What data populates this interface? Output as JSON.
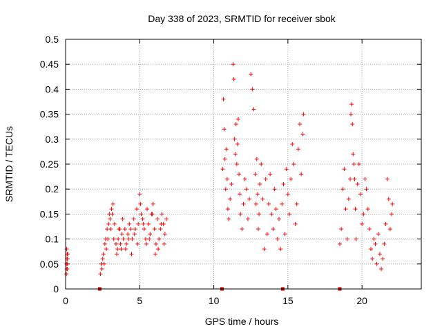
{
  "chart_data": {
    "type": "scatter",
    "title": "Day 338 of 2023, SRMTID for receiver sbok",
    "xlabel": "GPS time / hours",
    "ylabel": "SRMTID / TECUs",
    "xlim": [
      0,
      24
    ],
    "ylim": [
      0,
      0.5
    ],
    "xticks": [
      0,
      5,
      10,
      15,
      20
    ],
    "yticks": [
      0,
      0.05,
      0.1,
      0.15,
      0.2,
      0.25,
      0.3,
      0.35,
      0.4,
      0.45,
      0.5
    ],
    "xtick_labels": [
      "0",
      "5",
      "10",
      "15",
      "20"
    ],
    "ytick_labels": [
      "0",
      "0.05",
      "0.1",
      "0.15",
      "0.2",
      "0.25",
      "0.3",
      "0.35",
      "0.4",
      "0.45",
      "0.5"
    ],
    "grid": true,
    "marker": "+",
    "series": [
      {
        "name": "SRMTID",
        "color": "#ff0000",
        "x": [
          0.05,
          0.06,
          0.07,
          0.08,
          0.09,
          0.1,
          0.11,
          0.12,
          0.13,
          0.14,
          2.35,
          2.4,
          2.45,
          2.5,
          2.55,
          2.6,
          2.65,
          2.7,
          2.75,
          2.8,
          2.85,
          2.9,
          2.95,
          3.0,
          3.05,
          3.1,
          3.15,
          3.2,
          3.3,
          3.4,
          3.5,
          3.55,
          3.6,
          3.7,
          3.75,
          3.8,
          3.9,
          4.0,
          4.1,
          4.2,
          4.3,
          4.4,
          4.5,
          4.6,
          4.7,
          4.8,
          4.9,
          5.0,
          5.1,
          5.2,
          5.3,
          5.4,
          5.5,
          5.6,
          5.7,
          5.8,
          5.9,
          6.0,
          6.1,
          6.2,
          6.3,
          6.4,
          6.5,
          6.6,
          6.7,
          6.8,
          3.25,
          3.45,
          3.65,
          3.85,
          4.05,
          4.25,
          4.45,
          4.65,
          4.85,
          5.05,
          5.25,
          5.45,
          5.65,
          5.85,
          6.05,
          6.25,
          6.45,
          6.65,
          10.6,
          10.65,
          10.7,
          10.75,
          10.8,
          10.85,
          10.9,
          10.95,
          11.0,
          11.1,
          11.2,
          11.3,
          11.35,
          11.4,
          11.45,
          11.5,
          11.55,
          11.6,
          11.65,
          11.7,
          11.75,
          11.8,
          11.9,
          12.0,
          12.1,
          12.2,
          12.3,
          12.4,
          12.5,
          12.6,
          12.7,
          12.8,
          12.85,
          12.9,
          12.95,
          13.0,
          13.05,
          13.1,
          13.2,
          13.3,
          13.4,
          13.5,
          13.6,
          13.7,
          13.8,
          13.9,
          14.0,
          14.1,
          14.2,
          14.3,
          14.4,
          14.5,
          14.6,
          14.7,
          14.8,
          14.9,
          15.0,
          15.1,
          15.2,
          15.3,
          15.4,
          15.5,
          15.6,
          15.7,
          15.8,
          15.9,
          16.0,
          16.05,
          18.5,
          18.6,
          18.7,
          18.8,
          18.9,
          19.0,
          19.1,
          19.2,
          19.25,
          19.3,
          19.35,
          19.4,
          19.45,
          19.5,
          19.55,
          19.6,
          19.7,
          19.8,
          19.9,
          20.0,
          20.1,
          20.2,
          20.3,
          20.4,
          20.5,
          20.6,
          20.7,
          20.8,
          20.9,
          21.0,
          21.1,
          21.2,
          21.3,
          21.4,
          21.5,
          21.6,
          21.7,
          21.8,
          21.9,
          22.0,
          22.05
        ],
        "y": [
          0.03,
          0.05,
          0.08,
          0.04,
          0.06,
          0.07,
          0.05,
          0.04,
          0.06,
          0.07,
          0.03,
          0.05,
          0.04,
          0.06,
          0.07,
          0.05,
          0.09,
          0.1,
          0.08,
          0.12,
          0.1,
          0.13,
          0.15,
          0.14,
          0.12,
          0.16,
          0.15,
          0.17,
          0.13,
          0.09,
          0.08,
          0.1,
          0.12,
          0.09,
          0.08,
          0.11,
          0.1,
          0.12,
          0.09,
          0.11,
          0.13,
          0.12,
          0.1,
          0.14,
          0.12,
          0.16,
          0.13,
          0.19,
          0.15,
          0.14,
          0.12,
          0.1,
          0.16,
          0.13,
          0.11,
          0.15,
          0.17,
          0.12,
          0.09,
          0.14,
          0.1,
          0.12,
          0.15,
          0.13,
          0.11,
          0.14,
          0.1,
          0.07,
          0.12,
          0.14,
          0.08,
          0.1,
          0.07,
          0.11,
          0.09,
          0.17,
          0.13,
          0.09,
          0.1,
          0.15,
          0.07,
          0.08,
          0.13,
          0.09,
          0.24,
          0.38,
          0.32,
          0.26,
          0.2,
          0.28,
          0.22,
          0.16,
          0.14,
          0.18,
          0.21,
          0.45,
          0.42,
          0.3,
          0.27,
          0.33,
          0.25,
          0.29,
          0.34,
          0.23,
          0.19,
          0.15,
          0.12,
          0.17,
          0.22,
          0.2,
          0.14,
          0.18,
          0.43,
          0.4,
          0.36,
          0.23,
          0.17,
          0.26,
          0.19,
          0.12,
          0.15,
          0.21,
          0.25,
          0.18,
          0.08,
          0.22,
          0.11,
          0.17,
          0.23,
          0.15,
          0.12,
          0.2,
          0.16,
          0.1,
          0.14,
          0.08,
          0.17,
          0.21,
          0.11,
          0.24,
          0.19,
          0.15,
          0.22,
          0.29,
          0.25,
          0.13,
          0.17,
          0.28,
          0.33,
          0.23,
          0.31,
          0.35,
          0.09,
          0.12,
          0.2,
          0.24,
          0.16,
          0.1,
          0.18,
          0.22,
          0.35,
          0.37,
          0.33,
          0.27,
          0.25,
          0.22,
          0.16,
          0.1,
          0.21,
          0.25,
          0.19,
          0.13,
          0.15,
          0.22,
          0.2,
          0.16,
          0.12,
          0.08,
          0.06,
          0.1,
          0.09,
          0.05,
          0.11,
          0.07,
          0.04,
          0.06,
          0.09,
          0.13,
          0.22,
          0.18,
          0.12,
          0.15,
          0.17
        ]
      }
    ],
    "baseline_markers_x": [
      2.3,
      10.55,
      14.65,
      18.5
    ]
  }
}
